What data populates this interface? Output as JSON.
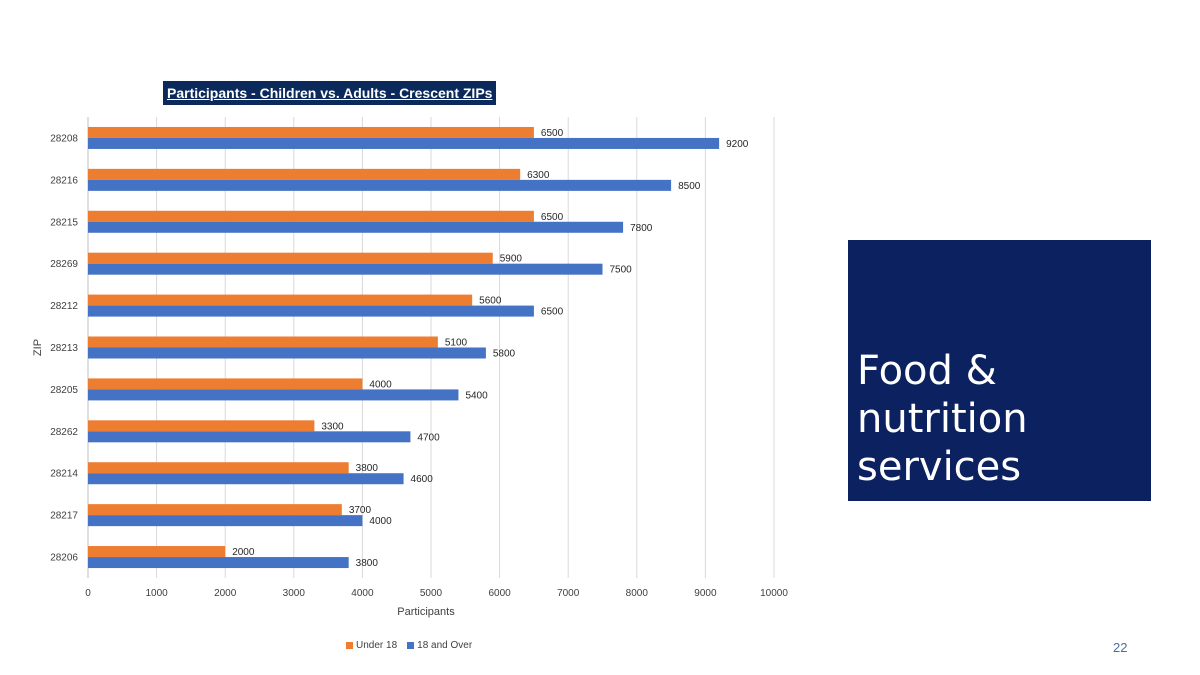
{
  "slide": {
    "heading": "Food & nutrition services",
    "page_number": "22",
    "box_color": "#0b2160"
  },
  "chart_data": {
    "type": "bar",
    "orientation": "horizontal",
    "title": "Participants - Children vs. Adults - Crescent ZIPs",
    "xlabel": "Participants",
    "ylabel": "ZIP",
    "xlim": [
      0,
      10000
    ],
    "x_ticks": [
      0,
      1000,
      2000,
      3000,
      4000,
      5000,
      6000,
      7000,
      8000,
      9000,
      10000
    ],
    "grid": "vertical",
    "legend_position": "bottom",
    "categories": [
      "28208",
      "28216",
      "28215",
      "28269",
      "28212",
      "28213",
      "28205",
      "28262",
      "28214",
      "28217",
      "28206"
    ],
    "series": [
      {
        "name": "Under 18",
        "color": "#ed7d31",
        "values": [
          6500,
          6300,
          6500,
          5900,
          5600,
          5100,
          4000,
          3300,
          3800,
          3700,
          2000
        ]
      },
      {
        "name": "18 and Over",
        "color": "#4472c4",
        "values": [
          9200,
          8500,
          7800,
          7500,
          6500,
          5800,
          5400,
          4700,
          4600,
          4000,
          3800
        ]
      }
    ]
  }
}
